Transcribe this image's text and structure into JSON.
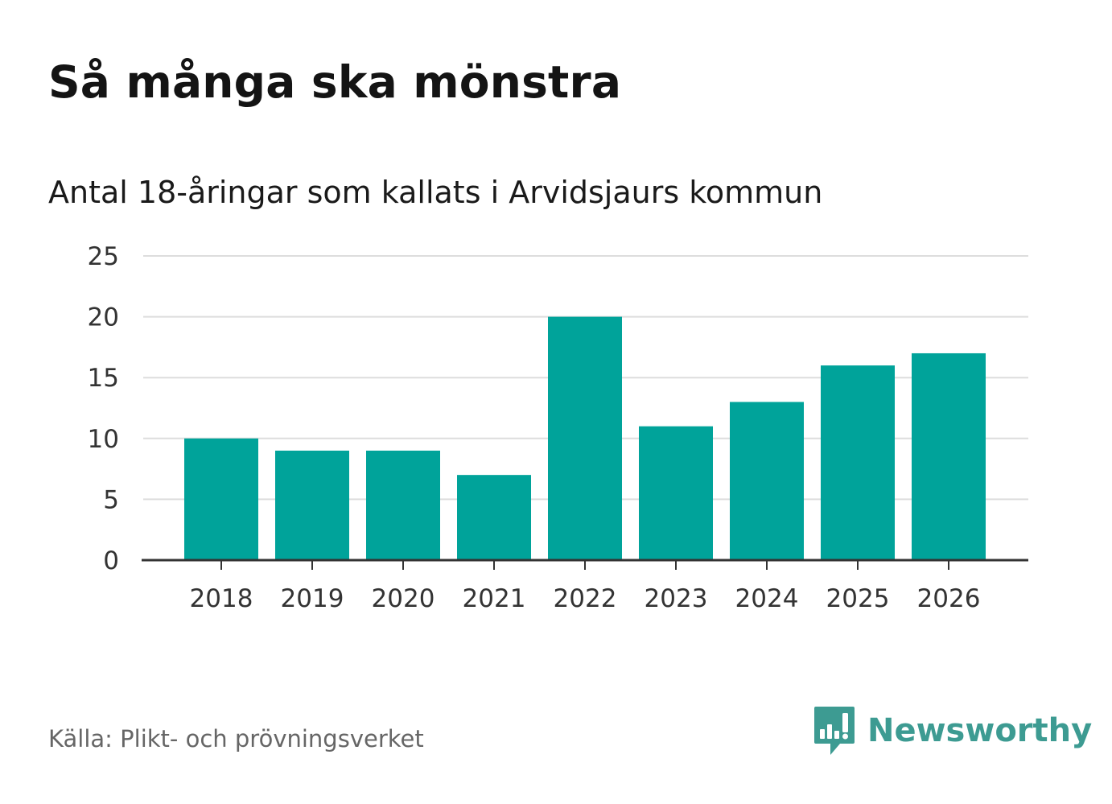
{
  "title": "Så många ska mönstra",
  "subtitle": "Antal 18-åringar som kallats i Arvidsjaurs kommun",
  "source": "Källa: Plikt- och prövningsverket",
  "brand": {
    "name": "Newsworthy",
    "icon": "newsworthy-logo-icon",
    "color": "#3d9b92"
  },
  "colors": {
    "bar": "#00a39a",
    "grid": "#dddddd",
    "axis": "#333333"
  },
  "chart_data": {
    "type": "bar",
    "title": "Så många ska mönstra",
    "subtitle": "Antal 18-åringar som kallats i Arvidsjaurs kommun",
    "xlabel": "",
    "ylabel": "",
    "categories": [
      "2018",
      "2019",
      "2020",
      "2021",
      "2022",
      "2023",
      "2024",
      "2025",
      "2026"
    ],
    "values": [
      10,
      9,
      9,
      7,
      20,
      11,
      13,
      16,
      17
    ],
    "ylim": [
      0,
      25
    ],
    "yticks": [
      "0",
      "5",
      "10",
      "15",
      "20",
      "25"
    ],
    "grid": true,
    "legend": "none"
  }
}
